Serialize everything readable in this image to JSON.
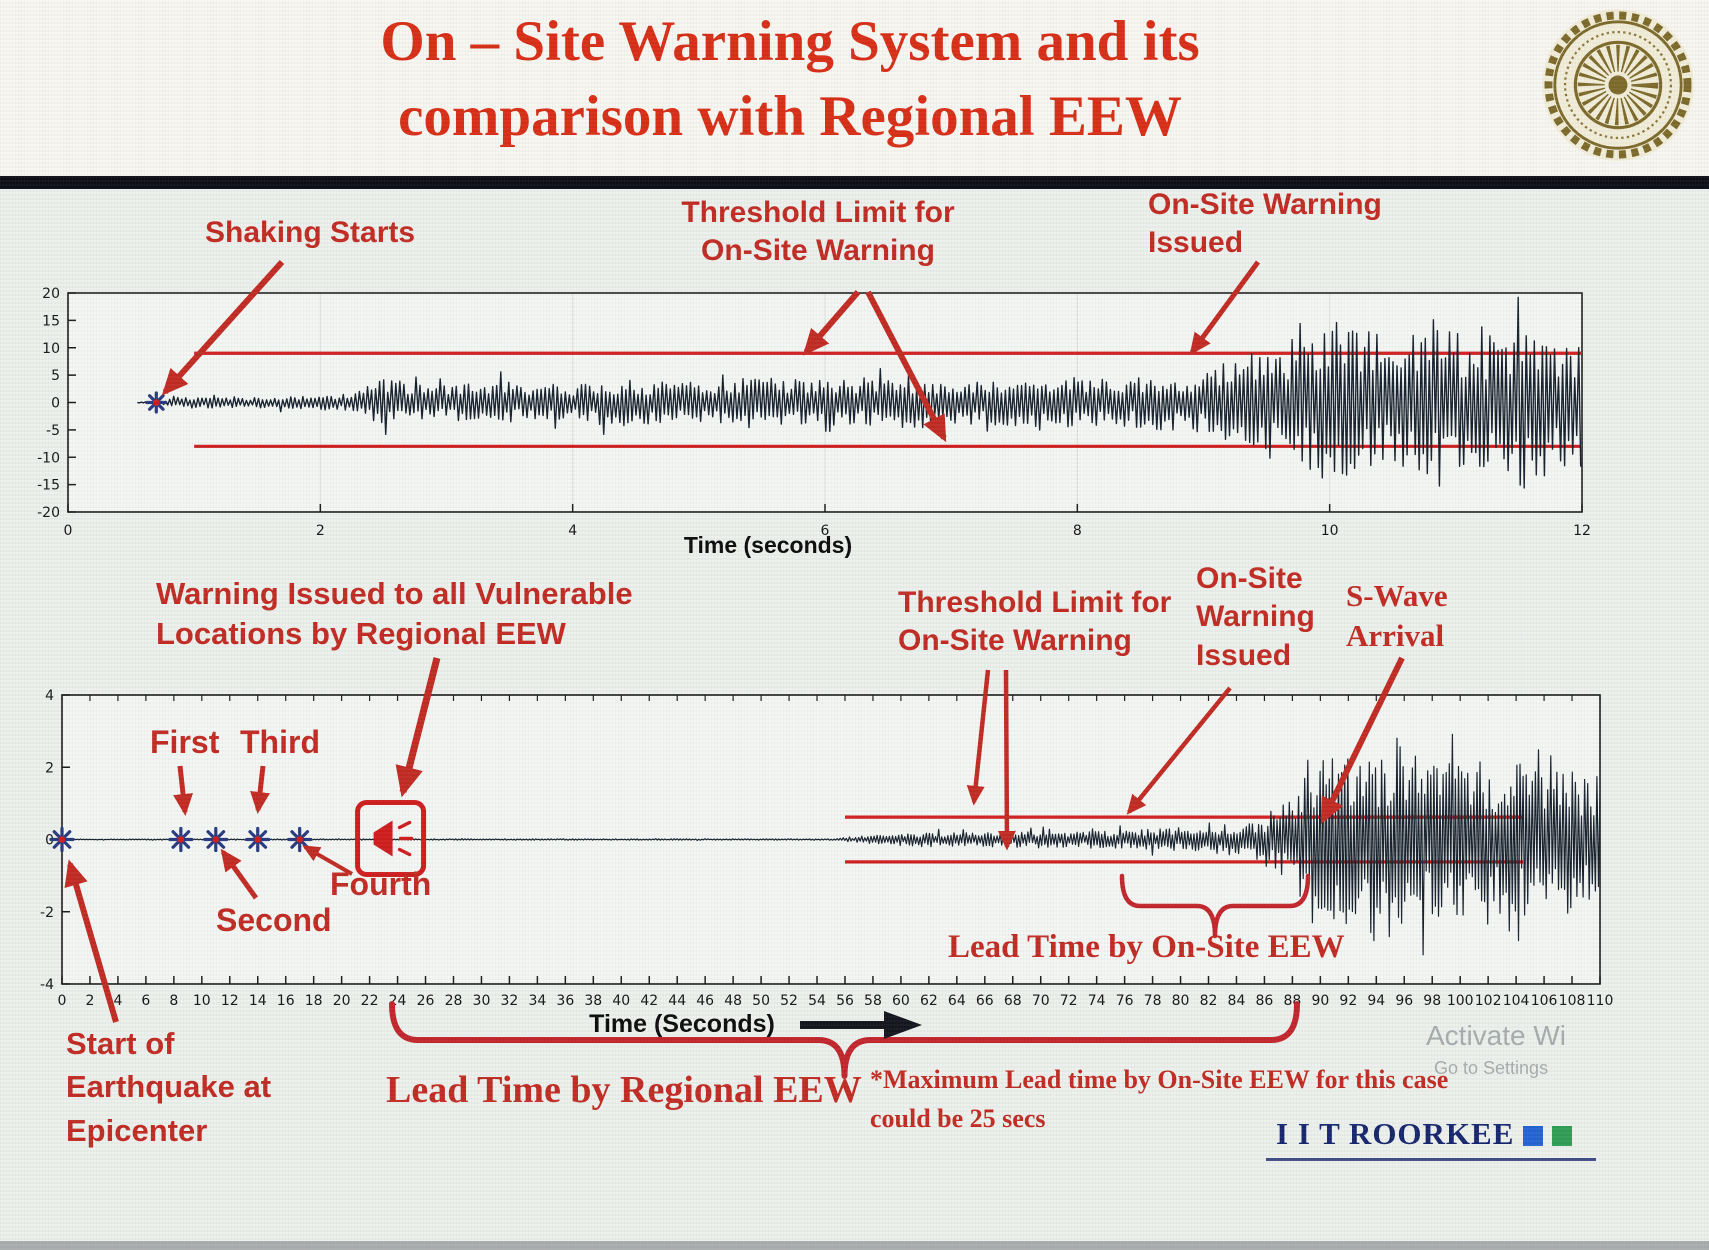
{
  "slide": {
    "title_line1": "On – Site Warning System and its",
    "title_line2": "comparison with Regional EEW"
  },
  "colors": {
    "title_red": "#d92d15",
    "annotation_red": "#c22a22",
    "waveform": "#16202c",
    "threshold": "#d01c1c",
    "marker_blue": "#28397f",
    "brand_navy": "#16256d",
    "brace_red": "#c3252b"
  },
  "chart_data": [
    {
      "id": "onsite-seismogram",
      "type": "line",
      "title": "",
      "xlabel": "Time (seconds)",
      "ylabel": "",
      "xlim": [
        0,
        12
      ],
      "xticks": [
        0,
        2,
        4,
        6,
        8,
        10,
        12
      ],
      "ylim": [
        -20,
        20
      ],
      "yticks": [
        20,
        15,
        10,
        5,
        0,
        -5,
        -10,
        -15,
        -20
      ],
      "grid": true,
      "threshold": {
        "upper": 9,
        "lower": -8,
        "x_start": 1.0,
        "x_end": 12
      },
      "event_marker": {
        "x": 0.7,
        "label": "shaking-start"
      },
      "series": [
        {
          "name": "on-site ground acceleration",
          "t_start": 0.55,
          "envelope": [
            [
              0.55,
              0.04
            ],
            [
              0.7,
              0.3
            ],
            [
              0.9,
              1.1
            ],
            [
              1.4,
              0.9
            ],
            [
              1.9,
              1.3
            ],
            [
              2.25,
              1.6
            ],
            [
              2.5,
              4.4
            ],
            [
              2.9,
              3.0
            ],
            [
              3.3,
              4.0
            ],
            [
              3.8,
              3.2
            ],
            [
              4.3,
              4.4
            ],
            [
              4.9,
              3.6
            ],
            [
              5.4,
              4.8
            ],
            [
              6.0,
              4.0
            ],
            [
              6.6,
              5.0
            ],
            [
              7.2,
              4.2
            ],
            [
              7.8,
              4.6
            ],
            [
              8.4,
              4.4
            ],
            [
              8.9,
              5.6
            ],
            [
              9.2,
              7.0
            ],
            [
              9.5,
              10.5
            ],
            [
              9.8,
              13.5
            ],
            [
              10.15,
              16.5
            ],
            [
              10.5,
              11.5
            ],
            [
              10.85,
              15.5
            ],
            [
              11.2,
              12.5
            ],
            [
              11.55,
              16
            ],
            [
              11.8,
              13
            ],
            [
              12,
              14.5
            ]
          ]
        }
      ]
    },
    {
      "id": "regional-seismogram",
      "type": "line",
      "title": "",
      "xlabel": "Time (Seconds)",
      "ylabel": "",
      "xlim": [
        0,
        110
      ],
      "xtick_step": 2,
      "ylim": [
        -4,
        4
      ],
      "yticks": [
        4,
        2,
        0,
        -2,
        -4
      ],
      "grid": false,
      "threshold": {
        "upper": 0.62,
        "lower": -0.62,
        "x_start": 56,
        "x_end": 104.5
      },
      "p_markers": [
        0,
        8.5,
        11,
        14,
        17
      ],
      "regional_warning_icon_x": 23.5,
      "series": [
        {
          "name": "regional ground acceleration",
          "t_start": 0,
          "envelope": [
            [
              0,
              0.015
            ],
            [
              55,
              0.02
            ],
            [
              57,
              0.09
            ],
            [
              59,
              0.15
            ],
            [
              61,
              0.19
            ],
            [
              64,
              0.22
            ],
            [
              67,
              0.2
            ],
            [
              70,
              0.24
            ],
            [
              73,
              0.21
            ],
            [
              76,
              0.26
            ],
            [
              78,
              0.3
            ],
            [
              80,
              0.33
            ],
            [
              82,
              0.31
            ],
            [
              84,
              0.42
            ],
            [
              86,
              0.6
            ],
            [
              87.5,
              1.1
            ],
            [
              88.6,
              2.0
            ],
            [
              89.6,
              2.7
            ],
            [
              90.6,
              2.1
            ],
            [
              91.6,
              2.9
            ],
            [
              92.6,
              2.3
            ],
            [
              93.6,
              2.8
            ],
            [
              94.8,
              2.2
            ],
            [
              96,
              2.7
            ],
            [
              97.5,
              2.1
            ],
            [
              99,
              2.5
            ],
            [
              100.5,
              2.0
            ],
            [
              102,
              2.45
            ],
            [
              103.5,
              1.95
            ],
            [
              105,
              2.3
            ],
            [
              106.5,
              1.8
            ],
            [
              108,
              2.1
            ],
            [
              109,
              1.7
            ],
            [
              110,
              1.9
            ]
          ]
        }
      ]
    }
  ],
  "annotations": {
    "shaking_starts": "Shaking Starts",
    "threshold_top": [
      "Threshold Limit for",
      "On-Site Warning"
    ],
    "onsite_issued_top": [
      "On-Site Warning",
      "Issued"
    ],
    "regional_warning": [
      "Warning Issued to all Vulnerable",
      "Locations by Regional EEW"
    ],
    "p_wave_labels": {
      "first": "First",
      "second": "Second",
      "third": "Third",
      "fourth": "Fourth"
    },
    "start_epicenter": [
      "Start of",
      "Earthquake at",
      "Epicenter"
    ],
    "threshold_bottom": [
      "Threshold Limit for",
      "On-Site Warning"
    ],
    "onsite_issued_bottom": [
      "On-Site",
      "Warning",
      "Issued"
    ],
    "s_wave": [
      "S-Wave",
      "Arrival"
    ],
    "lead_onsite": "Lead Time by On-Site EEW",
    "lead_regional": "Lead Time by Regional EEW",
    "max_lead": [
      "*Maximum Lead time by On-Site EEW for this case",
      "could be 25 secs"
    ]
  },
  "icons": {
    "logo": "iit-roorkee-seal",
    "time_axis_arrow": "right-arrow",
    "regional_warning": "alert-megaphone-box",
    "p_wave_marker": "star-burst"
  },
  "footer": {
    "brand": "I I T ROORKEE",
    "squares": [
      "#2563d4",
      "#2f9e53"
    ],
    "watermark_line1": "Activate Wi",
    "watermark_line2": "Go to Settings"
  }
}
